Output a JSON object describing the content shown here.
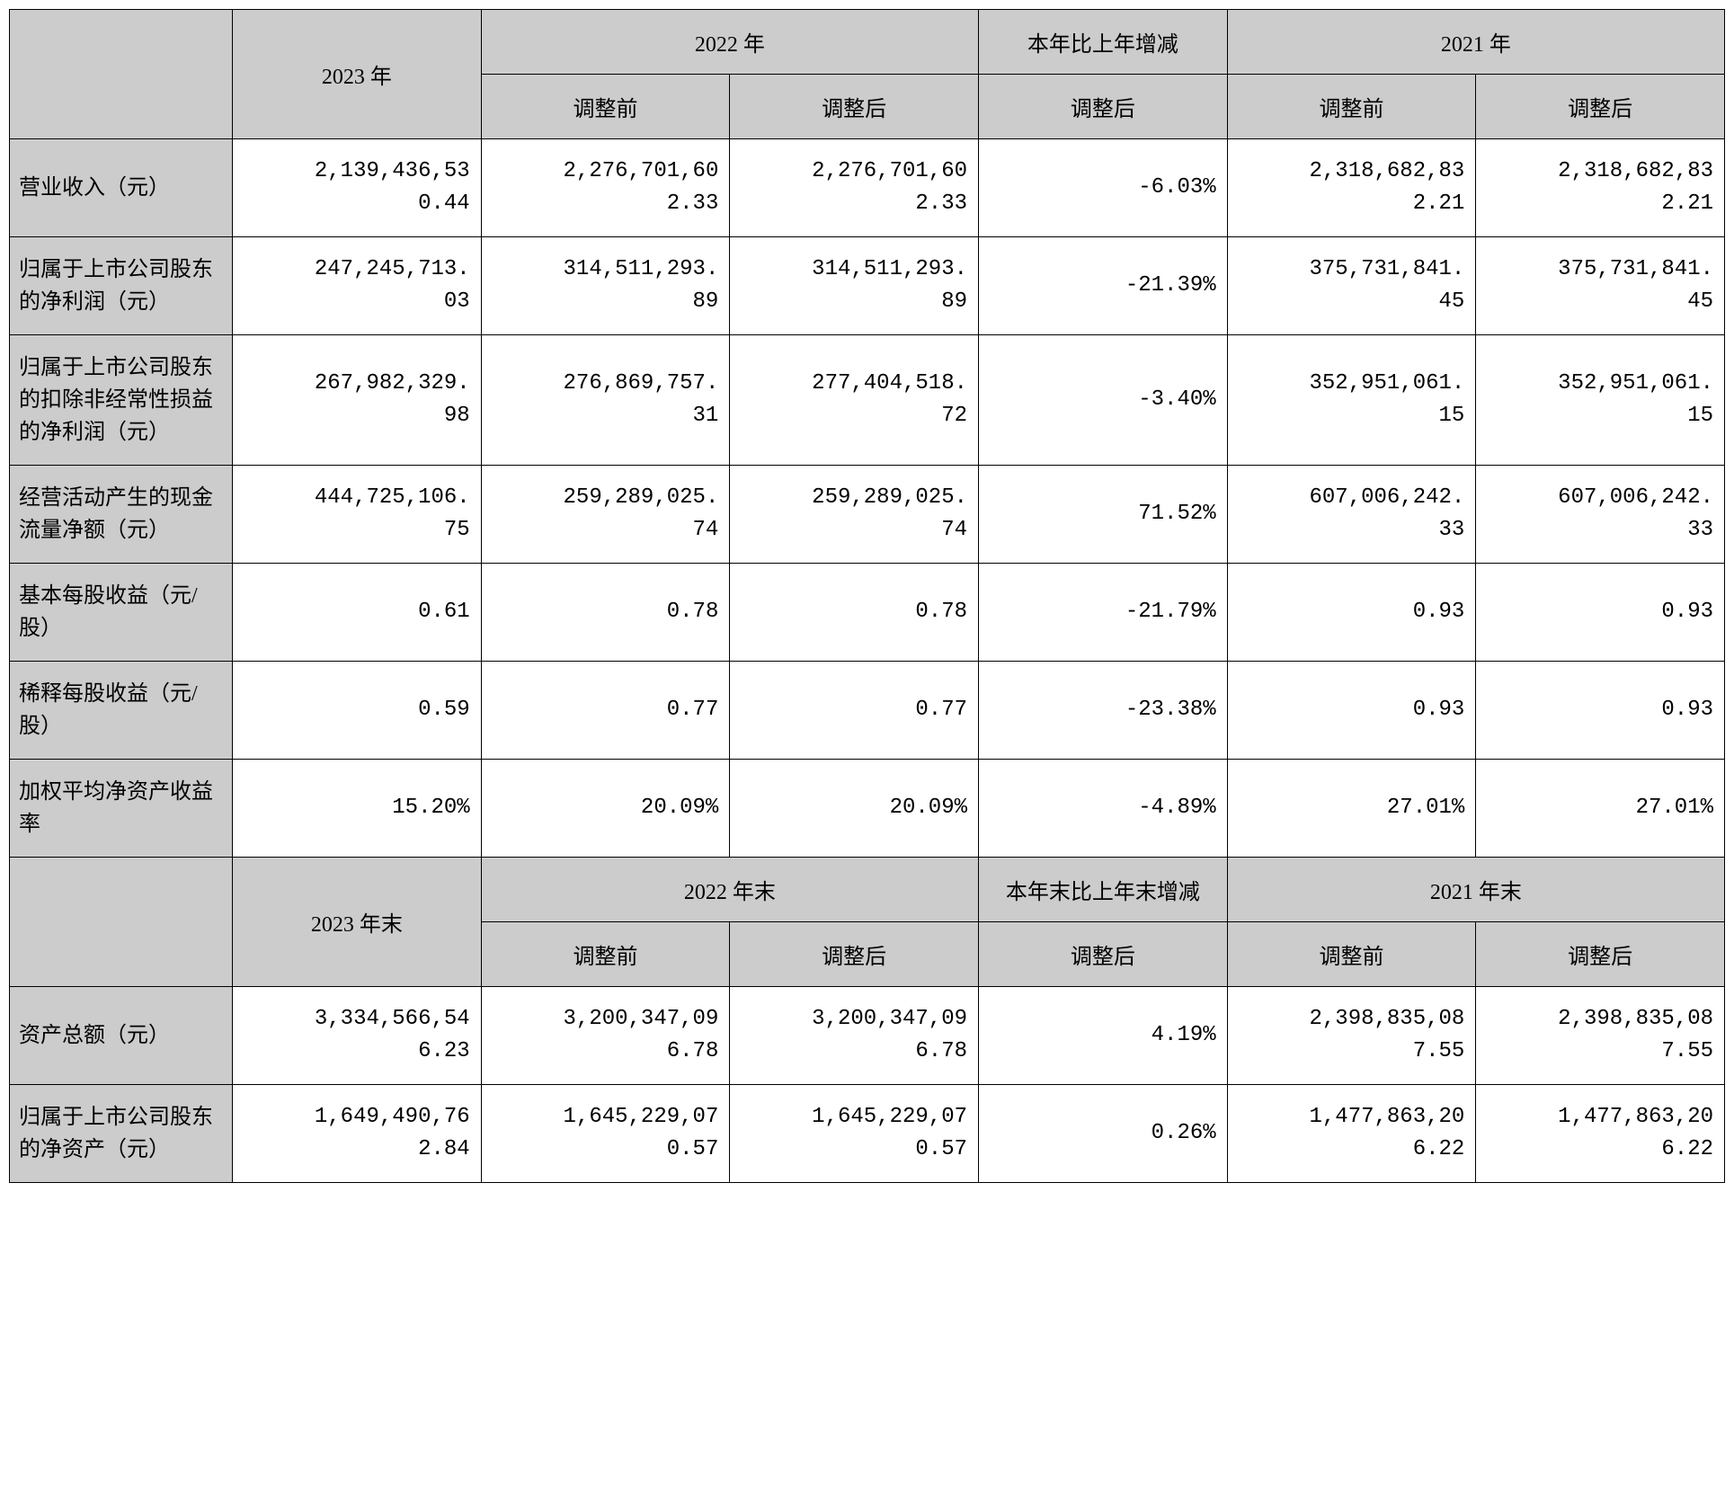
{
  "headers1": {
    "y2023": "2023 年",
    "y2022": "2022 年",
    "change": "本年比上年增减",
    "y2021": "2021 年",
    "before": "调整前",
    "after": "调整后"
  },
  "headers2": {
    "y2023": "2023 年末",
    "y2022": "2022 年末",
    "change": "本年末比上年末增减",
    "y2021": "2021 年末"
  },
  "rows1": [
    {
      "label": "营业收入（元）",
      "y2023": "2,139,436,530.44",
      "y2022_before": "2,276,701,602.33",
      "y2022_after": "2,276,701,602.33",
      "change": "-6.03%",
      "y2021_before": "2,318,682,832.21",
      "y2021_after": "2,318,682,832.21"
    },
    {
      "label": "归属于上市公司股东的净利润（元）",
      "y2023": "247,245,713.03",
      "y2022_before": "314,511,293.89",
      "y2022_after": "314,511,293.89",
      "change": "-21.39%",
      "y2021_before": "375,731,841.45",
      "y2021_after": "375,731,841.45"
    },
    {
      "label": "归属于上市公司股东的扣除非经常性损益的净利润（元）",
      "y2023": "267,982,329.98",
      "y2022_before": "276,869,757.31",
      "y2022_after": "277,404,518.72",
      "change": "-3.40%",
      "y2021_before": "352,951,061.15",
      "y2021_after": "352,951,061.15"
    },
    {
      "label": "经营活动产生的现金流量净额（元）",
      "y2023": "444,725,106.75",
      "y2022_before": "259,289,025.74",
      "y2022_after": "259,289,025.74",
      "change": "71.52%",
      "y2021_before": "607,006,242.33",
      "y2021_after": "607,006,242.33"
    },
    {
      "label": "基本每股收益（元/股）",
      "y2023": "0.61",
      "y2022_before": "0.78",
      "y2022_after": "0.78",
      "change": "-21.79%",
      "y2021_before": "0.93",
      "y2021_after": "0.93"
    },
    {
      "label": "稀释每股收益（元/股）",
      "y2023": "0.59",
      "y2022_before": "0.77",
      "y2022_after": "0.77",
      "change": "-23.38%",
      "y2021_before": "0.93",
      "y2021_after": "0.93"
    },
    {
      "label": "加权平均净资产收益率",
      "y2023": "15.20%",
      "y2022_before": "20.09%",
      "y2022_after": "20.09%",
      "change": "-4.89%",
      "y2021_before": "27.01%",
      "y2021_after": "27.01%"
    }
  ],
  "rows2": [
    {
      "label": "资产总额（元）",
      "y2023": "3,334,566,546.23",
      "y2022_before": "3,200,347,096.78",
      "y2022_after": "3,200,347,096.78",
      "change": "4.19%",
      "y2021_before": "2,398,835,087.55",
      "y2021_after": "2,398,835,087.55"
    },
    {
      "label": "归属于上市公司股东的净资产（元）",
      "y2023": "1,649,490,762.84",
      "y2022_before": "1,645,229,070.57",
      "y2022_after": "1,645,229,070.57",
      "change": "0.26%",
      "y2021_before": "1,477,863,206.22",
      "y2021_after": "1,477,863,206.22"
    }
  ],
  "styling": {
    "header_bg": "#cccccc",
    "border_color": "#000000",
    "font_family": "SimSun",
    "font_size": 24,
    "value_align": "right",
    "label_align": "left"
  }
}
